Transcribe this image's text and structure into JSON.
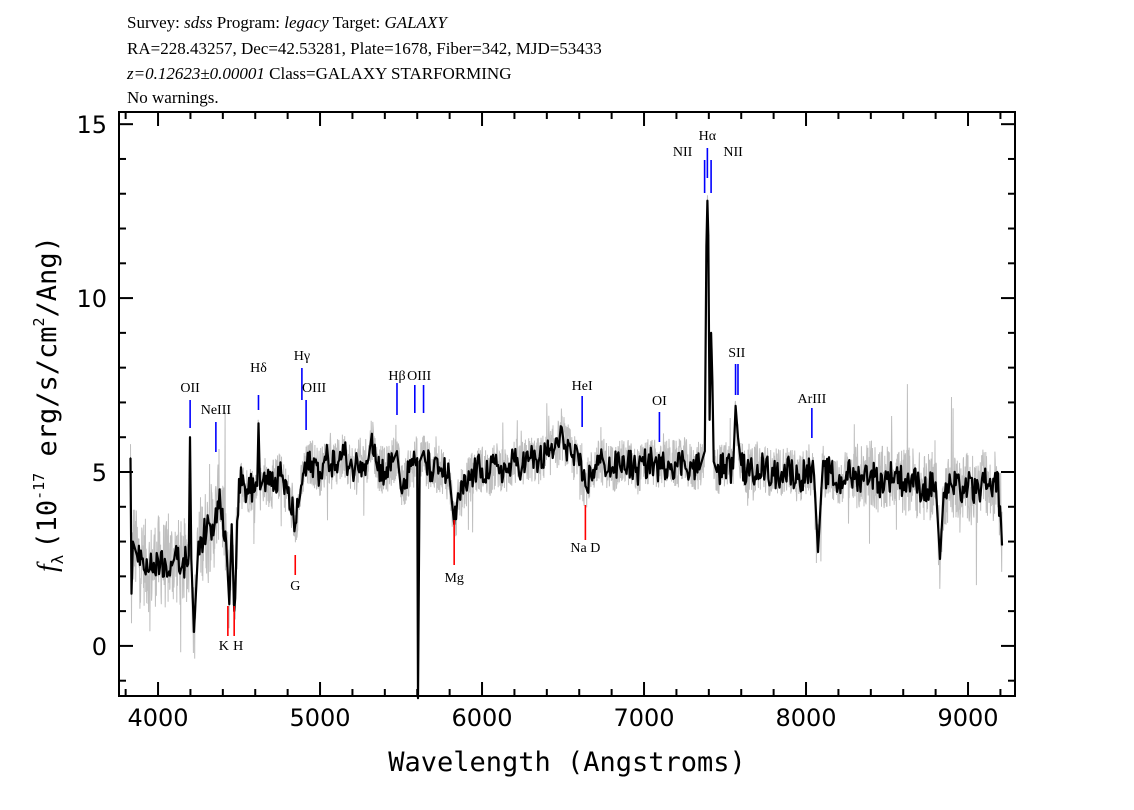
{
  "header": {
    "line1": {
      "survey_label": "Survey:",
      "survey": "sdss",
      "program_label": "Program:",
      "program": "legacy",
      "target_label": "Target:",
      "target": "GALAXY"
    },
    "line2": "RA=228.43257, Dec=42.53281, Plate=1678, Fiber=342, MJD=53433",
    "line3": {
      "redshift": "z=0.12623±0.00001",
      "class": "Class=GALAXY STARFORMING"
    },
    "line4": "No warnings."
  },
  "chart_data": {
    "type": "line",
    "xlabel": "Wavelength (Angstroms)",
    "ylabel": "f_λ (10^-17 erg/s/cm^2/Ang)",
    "ylabel_parts": {
      "f": "f",
      "sub": "λ",
      "pre": "(10",
      "exp": "-17",
      "mid": " erg/s/cm",
      "exp2": "2",
      "post": "/Ang)"
    },
    "xlim": [
      3759,
      9290
    ],
    "ylim": [
      -1.44,
      15.35
    ],
    "xticks": [
      4000,
      5000,
      6000,
      7000,
      8000,
      9000
    ],
    "xtick_labels": [
      "4000",
      "5000",
      "6000",
      "7000",
      "8000",
      "9000"
    ],
    "yticks": [
      0,
      5,
      10,
      15
    ],
    "ytick_labels": [
      "0",
      "5",
      "10",
      "15"
    ],
    "grid": false,
    "colors": {
      "smoothed": "#000000",
      "raw": "#bfbfbf",
      "emission": "#0000ff",
      "absorption": "#ff0000"
    },
    "series": [
      {
        "role": "smoothed flux",
        "x": [
          3830,
          3836,
          3845,
          3870,
          3900,
          3950,
          4000,
          4050,
          4100,
          4150,
          4190,
          4197,
          4205,
          4222,
          4250,
          4300,
          4350,
          4380,
          4420,
          4440,
          4455,
          4470,
          4500,
          4550,
          4612,
          4620,
          4630,
          4650,
          4700,
          4750,
          4800,
          4847,
          4900,
          4950,
          5000,
          5050,
          5100,
          5150,
          5200,
          5250,
          5300,
          5320,
          5350,
          5400,
          5450,
          5475,
          5500,
          5550,
          5600,
          5605,
          5615,
          5640,
          5650,
          5700,
          5750,
          5800,
          5828,
          5860,
          5900,
          5950,
          6000,
          6050,
          6100,
          6150,
          6200,
          6250,
          6300,
          6350,
          6400,
          6450,
          6500,
          6550,
          6600,
          6638,
          6700,
          6750,
          6800,
          6850,
          6900,
          6950,
          7000,
          7050,
          7100,
          7150,
          7200,
          7250,
          7300,
          7350,
          7375,
          7385,
          7391,
          7397,
          7405,
          7414,
          7422,
          7430,
          7450,
          7500,
          7550,
          7565,
          7580,
          7600,
          7650,
          7700,
          7750,
          7800,
          7850,
          7900,
          7950,
          8000,
          8050,
          8074,
          8100,
          8150,
          8200,
          8250,
          8300,
          8350,
          8400,
          8450,
          8500,
          8550,
          8600,
          8650,
          8700,
          8750,
          8800,
          8827,
          8850,
          8900,
          8950,
          9000,
          9050,
          9100,
          9150,
          9180,
          9210
        ],
        "y": [
          5.4,
          1.5,
          3.0,
          2.6,
          2.5,
          2.2,
          2.5,
          2.3,
          2.5,
          2.3,
          2.6,
          6.0,
          2.5,
          0.4,
          3.0,
          3.3,
          3.5,
          4.5,
          3.0,
          1.2,
          3.5,
          1.0,
          4.8,
          4.5,
          4.6,
          6.4,
          4.5,
          4.8,
          4.6,
          4.9,
          4.4,
          3.5,
          5.0,
          5.3,
          5.0,
          5.4,
          5.2,
          5.5,
          5.1,
          5.3,
          5.4,
          6.1,
          5.2,
          5.0,
          5.3,
          5.6,
          4.5,
          5.0,
          5.4,
          -1.5,
          5.3,
          5.6,
          5.3,
          5.0,
          5.1,
          4.8,
          3.5,
          4.3,
          4.6,
          5.0,
          5.1,
          5.0,
          5.2,
          5.0,
          5.3,
          5.2,
          5.4,
          5.3,
          5.5,
          5.7,
          6.0,
          5.5,
          5.2,
          4.6,
          5.2,
          5.3,
          5.1,
          5.2,
          5.3,
          5.0,
          5.2,
          5.3,
          5.1,
          5.3,
          5.2,
          5.3,
          5.1,
          5.2,
          5.6,
          11.5,
          12.8,
          11.8,
          6.5,
          9.0,
          7.6,
          5.3,
          5.0,
          5.2,
          5.1,
          6.9,
          6.0,
          5.2,
          4.9,
          5.2,
          5.1,
          4.9,
          5.0,
          5.1,
          4.8,
          5.0,
          4.9,
          2.7,
          4.9,
          5.0,
          4.6,
          5.0,
          4.8,
          4.9,
          5.0,
          4.7,
          4.8,
          5.0,
          4.7,
          4.8,
          4.6,
          4.5,
          4.7,
          2.5,
          4.4,
          4.6,
          4.5,
          4.6,
          4.4,
          4.7,
          4.3,
          5.0,
          2.9
        ]
      }
    ],
    "lines": [
      {
        "name": "OII",
        "wavelength": 4198,
        "kind": "emission"
      },
      {
        "name": "NeIII",
        "wavelength": 4357,
        "kind": "emission"
      },
      {
        "name": "Hδ",
        "wavelength": 4620,
        "kind": "emission"
      },
      {
        "name": "Hγ",
        "wavelength": 4888,
        "kind": "emission"
      },
      {
        "name": "OIII",
        "wavelength": 4914,
        "kind": "emission"
      },
      {
        "name": "Hβ",
        "wavelength": 5475,
        "kind": "emission"
      },
      {
        "name": "OIII",
        "wavelength": [
          5585,
          5639
        ],
        "kind": "emission"
      },
      {
        "name": "HeI",
        "wavelength": 6618,
        "kind": "emission"
      },
      {
        "name": "OI",
        "wavelength": 7095,
        "kind": "emission"
      },
      {
        "name": "NII",
        "wavelength": 7374,
        "kind": "emission"
      },
      {
        "name": "Hα",
        "wavelength": 7391,
        "kind": "emission"
      },
      {
        "name": "NII",
        "wavelength": 7414,
        "kind": "emission"
      },
      {
        "name": "SII",
        "wavelength": [
          7565,
          7580
        ],
        "kind": "emission"
      },
      {
        "name": "ArIII",
        "wavelength": 8036,
        "kind": "emission"
      },
      {
        "name": "K",
        "wavelength": 4431,
        "kind": "absorption"
      },
      {
        "name": "H",
        "wavelength": 4470,
        "kind": "absorption"
      },
      {
        "name": "G",
        "wavelength": 4847,
        "kind": "absorption"
      },
      {
        "name": "Mg",
        "wavelength": 5828,
        "kind": "absorption"
      },
      {
        "name": "Na D",
        "wavelength": 6638,
        "kind": "absorption"
      }
    ]
  }
}
